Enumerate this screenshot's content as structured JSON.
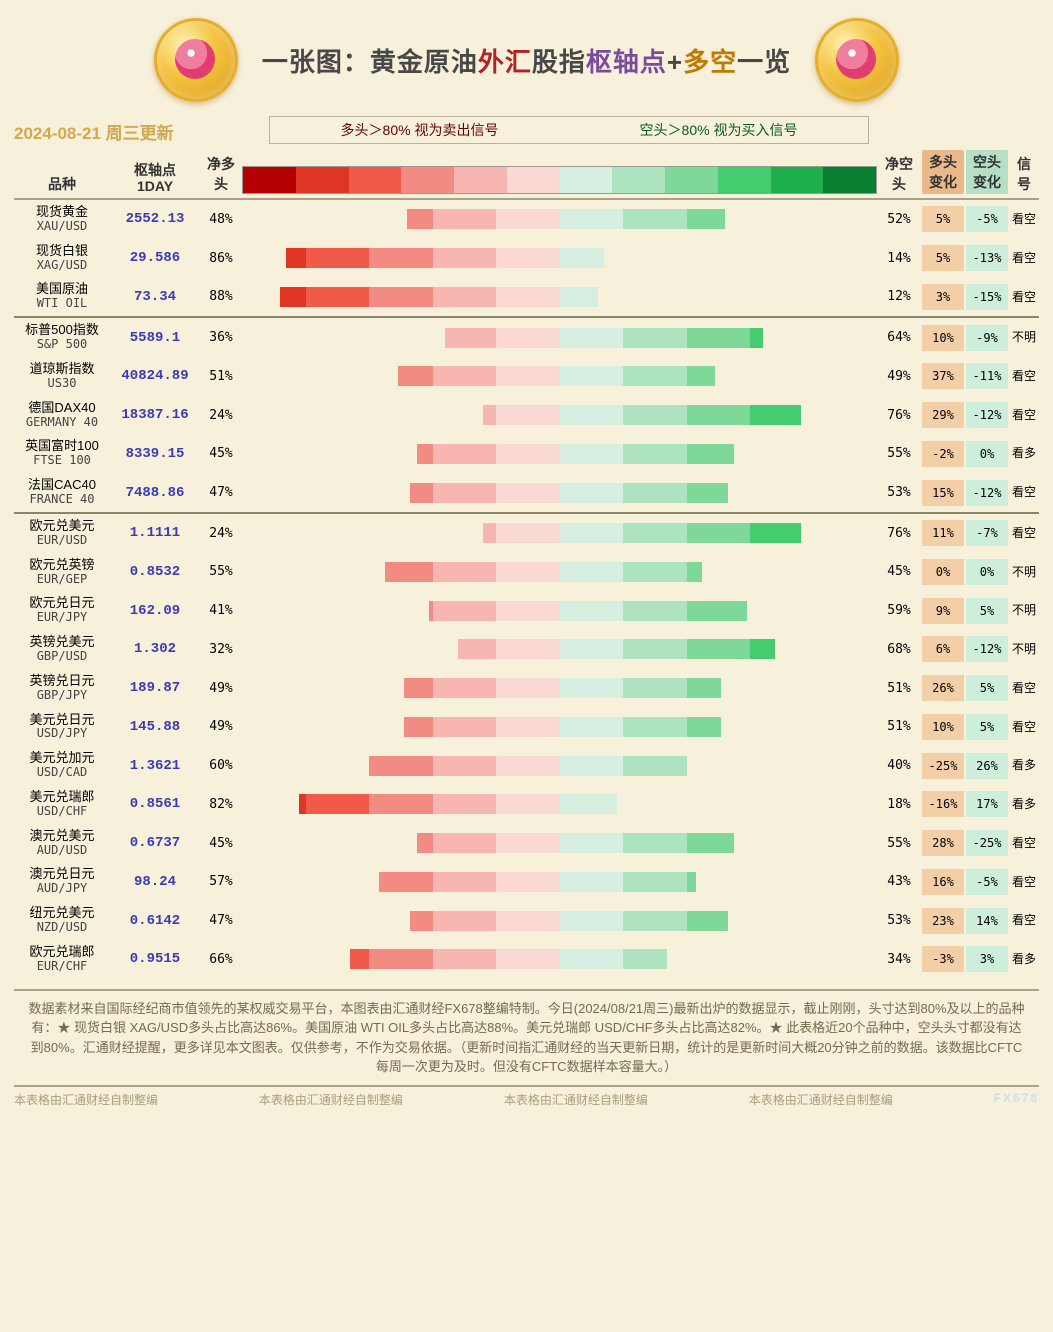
{
  "title": {
    "seg1": "一张图：黄金原油",
    "seg2": "外汇",
    "seg3": "股指",
    "seg4": "枢轴点",
    "seg5": "+",
    "seg6": "多空",
    "seg7": "一览"
  },
  "date_label": "2024-08-21 周三更新",
  "legend": {
    "long_rule": "多头＞80% 视为卖出信号",
    "short_rule": "空头＞80% 视为买入信号"
  },
  "columns": {
    "name": "品种",
    "pivot_l1": "枢轴点",
    "pivot_l2": "1DAY",
    "net_long_l1": "净多",
    "net_long_l2": "头",
    "net_short_l1": "净空",
    "net_short_l2": "头",
    "ch_long_l1": "多头",
    "ch_long_l2": "变化",
    "ch_short_l1": "空头",
    "ch_short_l2": "变化",
    "signal_l1": "信",
    "signal_l2": "号"
  },
  "color_scale": {
    "long_colors": [
      "#b30000",
      "#e03626",
      "#f05a4a",
      "#f28c82",
      "#f7b6af",
      "#fbd9d3"
    ],
    "short_colors": [
      "#d7efe0",
      "#aee3bf",
      "#7dd89a",
      "#45cc6e",
      "#1fae4c",
      "#0b7f30"
    ]
  },
  "bar_style": {
    "background": "#f7f0db",
    "half_width_pct": 50,
    "thresholds_pct": [
      20,
      40,
      60,
      80,
      90,
      100
    ]
  },
  "groups": [
    {
      "rows": [
        {
          "cn": "现货黄金",
          "en": "XAU/USD",
          "pivot": "2552.13",
          "long": 48,
          "short": 52,
          "ch_long": "5%",
          "ch_short": "-5%",
          "signal": "看空"
        },
        {
          "cn": "现货白银",
          "en": "XAG/USD",
          "pivot": "29.586",
          "long": 86,
          "short": 14,
          "ch_long": "5%",
          "ch_short": "-13%",
          "signal": "看空"
        },
        {
          "cn": "美国原油",
          "en": "WTI OIL",
          "pivot": "73.34",
          "long": 88,
          "short": 12,
          "ch_long": "3%",
          "ch_short": "-15%",
          "signal": "看空"
        }
      ]
    },
    {
      "rows": [
        {
          "cn": "标普500指数",
          "en": "S&P 500",
          "pivot": "5589.1",
          "long": 36,
          "short": 64,
          "ch_long": "10%",
          "ch_short": "-9%",
          "signal": "不明"
        },
        {
          "cn": "道琼斯指数",
          "en": "US30",
          "pivot": "40824.89",
          "long": 51,
          "short": 49,
          "ch_long": "37%",
          "ch_short": "-11%",
          "signal": "看空"
        },
        {
          "cn": "德国DAX40",
          "en": "GERMANY 40",
          "pivot": "18387.16",
          "long": 24,
          "short": 76,
          "ch_long": "29%",
          "ch_short": "-12%",
          "signal": "看空"
        },
        {
          "cn": "英国富时100",
          "en": "FTSE 100",
          "pivot": "8339.15",
          "long": 45,
          "short": 55,
          "ch_long": "-2%",
          "ch_short": "0%",
          "signal": "看多"
        },
        {
          "cn": "法国CAC40",
          "en": "FRANCE 40",
          "pivot": "7488.86",
          "long": 47,
          "short": 53,
          "ch_long": "15%",
          "ch_short": "-12%",
          "signal": "看空"
        }
      ]
    },
    {
      "rows": [
        {
          "cn": "欧元兑美元",
          "en": "EUR/USD",
          "pivot": "1.1111",
          "long": 24,
          "short": 76,
          "ch_long": "11%",
          "ch_short": "-7%",
          "signal": "看空"
        },
        {
          "cn": "欧元兑英镑",
          "en": "EUR/GEP",
          "pivot": "0.8532",
          "long": 55,
          "short": 45,
          "ch_long": "0%",
          "ch_short": "0%",
          "signal": "不明"
        },
        {
          "cn": "欧元兑日元",
          "en": "EUR/JPY",
          "pivot": "162.09",
          "long": 41,
          "short": 59,
          "ch_long": "9%",
          "ch_short": "5%",
          "signal": "不明"
        },
        {
          "cn": "英镑兑美元",
          "en": "GBP/USD",
          "pivot": "1.302",
          "long": 32,
          "short": 68,
          "ch_long": "6%",
          "ch_short": "-12%",
          "signal": "不明"
        },
        {
          "cn": "英镑兑日元",
          "en": "GBP/JPY",
          "pivot": "189.87",
          "long": 49,
          "short": 51,
          "ch_long": "26%",
          "ch_short": "5%",
          "signal": "看空"
        },
        {
          "cn": "美元兑日元",
          "en": "USD/JPY",
          "pivot": "145.88",
          "long": 49,
          "short": 51,
          "ch_long": "10%",
          "ch_short": "5%",
          "signal": "看空"
        },
        {
          "cn": "美元兑加元",
          "en": "USD/CAD",
          "pivot": "1.3621",
          "long": 60,
          "short": 40,
          "ch_long": "-25%",
          "ch_short": "26%",
          "signal": "看多"
        },
        {
          "cn": "美元兑瑞郎",
          "en": "USD/CHF",
          "pivot": "0.8561",
          "long": 82,
          "short": 18,
          "ch_long": "-16%",
          "ch_short": "17%",
          "signal": "看多"
        },
        {
          "cn": "澳元兑美元",
          "en": "AUD/USD",
          "pivot": "0.6737",
          "long": 45,
          "short": 55,
          "ch_long": "28%",
          "ch_short": "-25%",
          "signal": "看空"
        },
        {
          "cn": "澳元兑日元",
          "en": "AUD/JPY",
          "pivot": "98.24",
          "long": 57,
          "short": 43,
          "ch_long": "16%",
          "ch_short": "-5%",
          "signal": "看空"
        },
        {
          "cn": "纽元兑美元",
          "en": "NZD/USD",
          "pivot": "0.6142",
          "long": 47,
          "short": 53,
          "ch_long": "23%",
          "ch_short": "14%",
          "signal": "看空"
        },
        {
          "cn": "欧元兑瑞郎",
          "en": "EUR/CHF",
          "pivot": "0.9515",
          "long": 66,
          "short": 34,
          "ch_long": "-3%",
          "ch_short": "3%",
          "signal": "看多"
        }
      ]
    }
  ],
  "footer_note": "数据素材来自国际经纪商市值领先的某权威交易平台，本图表由汇通财经FX678整编特制。今日(2024/08/21周三)最新出炉的数据显示，截止刚刚，头寸达到80%及以上的品种有：★ 现货白银 XAG/USD多头占比高达86%。美国原油 WTI OIL多头占比高达88%。美元兑瑞郎 USD/CHF多头占比高达82%。★ 此表格近20个品种中，空头头寸都没有达到80%。汇通财经提醒，更多详见本文图表。仅供参考，不作为交易依据。（更新时间指汇通财经的当天更新日期，统计的是更新时间大概20分钟之前的数据。该数据比CFTC每周一次更为及时。但没有CFTC数据样本容量大。）",
  "footer_repeat": "本表格由汇通财经自制整编",
  "watermark": "FX678"
}
